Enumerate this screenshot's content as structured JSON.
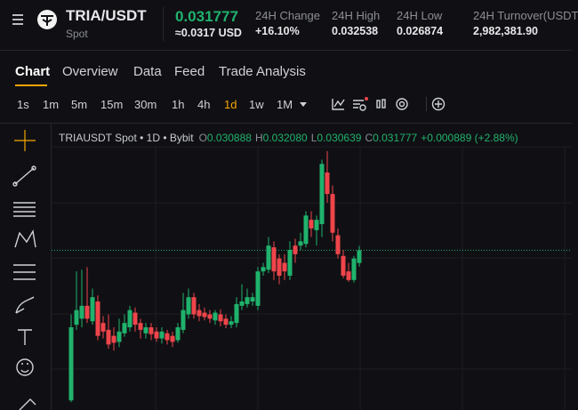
{
  "header": {
    "pair": "TRIA/USDT",
    "market": "Spot",
    "last_price": "0.031777",
    "usd_price": "≈0.0317 USD",
    "stats": [
      {
        "label": "24H Change",
        "value": "+16.10%"
      },
      {
        "label": "24H High",
        "value": "0.032538"
      },
      {
        "label": "24H Low",
        "value": "0.026874"
      },
      {
        "label": "24H Turnover(USDT",
        "value": "2,982,381.90"
      }
    ]
  },
  "tabs": [
    "Chart",
    "Overview",
    "Data",
    "Feed",
    "Trade Analysis"
  ],
  "intervals": [
    "1s",
    "1m",
    "5m",
    "15m",
    "30m",
    "1h",
    "4h",
    "1d",
    "1w",
    "1M"
  ],
  "chart_legend": {
    "symbol": "TRIAUSDT Spot • 1D • Bybit",
    "ohlc": [
      {
        "key": "O",
        "value": "0.030888"
      },
      {
        "key": "H",
        "value": "0.032080"
      },
      {
        "key": "L",
        "value": "0.030639"
      },
      {
        "key": "C",
        "value": "0.031777"
      }
    ],
    "change": "+0.000889 (+2.88%)"
  },
  "chart_data": {
    "type": "candlestick",
    "up_color": "#20b26c",
    "down_color": "#ef454a",
    "ylim": [
      0.021,
      0.039
    ],
    "open": [
      0.0213,
      0.02658,
      0.027,
      0.0279,
      0.02682,
      0.0282,
      0.0267,
      0.02622,
      0.0258,
      0.02538,
      0.02598,
      0.0264,
      0.02742,
      0.0267,
      0.02598,
      0.0264,
      0.0261,
      0.02562,
      0.02598,
      0.0258,
      0.0255,
      0.02622,
      0.0273,
      0.0285,
      0.0276,
      0.02742,
      0.0273,
      0.02688,
      0.0273,
      0.027,
      0.02658,
      0.0267,
      0.0279,
      0.02802,
      0.0282,
      0.0279,
      0.0303,
      0.03042,
      0.03198,
      0.0312,
      0.0309,
      0.03,
      0.0321,
      0.0321,
      0.03222,
      0.0339,
      0.03318,
      0.0336,
      0.0372,
      0.0357,
      0.03282,
      0.03138,
      0.0303,
      0.0297,
      0.030888
    ],
    "high": [
      0.0273,
      0.0303,
      0.03042,
      0.0306,
      0.0291,
      0.02862,
      0.02718,
      0.0273,
      0.0264,
      0.027,
      0.0273,
      0.0279,
      0.02778,
      0.027,
      0.0267,
      0.0267,
      0.0264,
      0.0264,
      0.02622,
      0.0261,
      0.0267,
      0.0288,
      0.0291,
      0.0288,
      0.02802,
      0.02778,
      0.0276,
      0.0276,
      0.02766,
      0.0273,
      0.02718,
      0.0285,
      0.0294,
      0.0291,
      0.0288,
      0.0306,
      0.0309,
      0.0327,
      0.0324,
      0.0315,
      0.0315,
      0.0324,
      0.03258,
      0.033,
      0.0345,
      0.0345,
      0.0342,
      0.0381,
      0.0387,
      0.0363,
      0.0333,
      0.0318,
      0.0309,
      0.03138,
      0.03208
    ],
    "low": [
      0.02118,
      0.02622,
      0.0264,
      0.0267,
      0.02658,
      0.0255,
      0.02562,
      0.0249,
      0.02478,
      0.02502,
      0.02574,
      0.0261,
      0.0261,
      0.02562,
      0.02562,
      0.0255,
      0.02538,
      0.02526,
      0.0252,
      0.02502,
      0.02532,
      0.02598,
      0.027,
      0.027,
      0.02682,
      0.02688,
      0.0267,
      0.02658,
      0.02646,
      0.02634,
      0.02634,
      0.0264,
      0.0276,
      0.02778,
      0.0279,
      0.0276,
      0.03,
      0.03018,
      0.0297,
      0.0294,
      0.0297,
      0.0297,
      0.0309,
      0.0318,
      0.03198,
      0.0327,
      0.0321,
      0.0327,
      0.0351,
      0.0324,
      0.0312,
      0.02982,
      0.02958,
      0.02952,
      0.030639
    ],
    "close": [
      0.0264,
      0.0276,
      0.0279,
      0.027,
      0.0285,
      0.0258,
      0.0261,
      0.0252,
      0.02532,
      0.0261,
      0.0267,
      0.0276,
      0.02658,
      0.02622,
      0.0264,
      0.02592,
      0.02562,
      0.0261,
      0.0255,
      0.02538,
      0.0264,
      0.0276,
      0.0285,
      0.0273,
      0.02718,
      0.02712,
      0.027,
      0.02742,
      0.02682,
      0.02658,
      0.02682,
      0.02802,
      0.0282,
      0.0285,
      0.0285,
      0.0303,
      0.0306,
      0.0321,
      0.0303,
      0.03,
      0.0303,
      0.0318,
      0.0315,
      0.0324,
      0.0342,
      0.0333,
      0.0339,
      0.0378,
      0.0357,
      0.033,
      0.0315,
      0.03,
      0.0297,
      0.0312,
      0.031777
    ]
  }
}
